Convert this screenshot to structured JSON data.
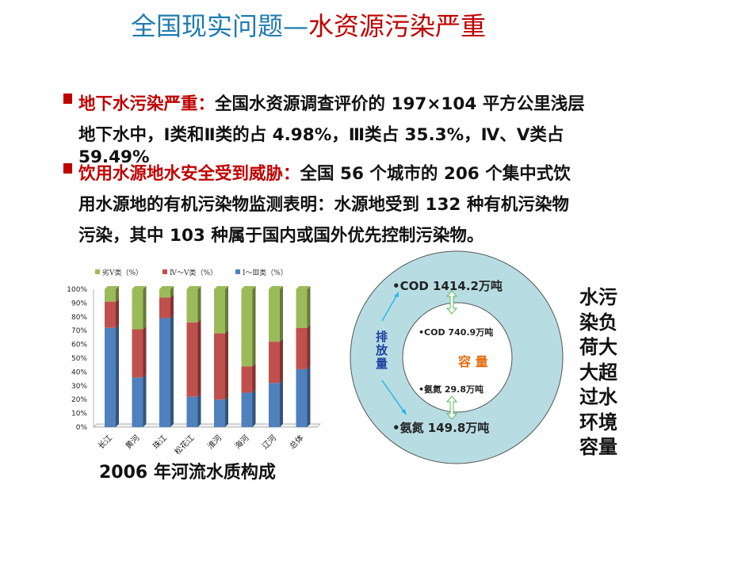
{
  "title": {
    "part1": "全国现实问题—",
    "part2": "水资源污染严重",
    "color1": "#1f7bb0",
    "color2": "#c00000"
  },
  "bullets": [
    {
      "heading": "地下水污染严重：",
      "lines": [
        "全国水资源调查评价的 197×104 平方公里浅层",
        "地下水中，Ⅰ类和Ⅱ类的占 4.98%，Ⅲ类占 35.3%，Ⅳ、Ⅴ类占",
        "59.49%"
      ]
    },
    {
      "heading": "饮用水源地水安全受到威胁：",
      "lines": [
        "全国 56 个城市的 206 个集中式饮",
        "用水源地的有机污染物监测表明：水源地受到 132 种有机污染物",
        "污染，其中 103 种属于国内或国外优先控制污染物。"
      ]
    }
  ],
  "chart_caption": "2006 年河流水质构成",
  "chart_data": {
    "type": "bar",
    "stacked": true,
    "categories": [
      "长江",
      "黄河",
      "珠江",
      "松花江",
      "淮河",
      "海河",
      "辽河",
      "总体"
    ],
    "series": [
      {
        "name": "Ⅰ～Ⅲ类（%）",
        "color": "#4f81bd",
        "values": [
          72,
          36,
          79,
          22,
          20,
          25,
          32,
          42
        ]
      },
      {
        "name": "Ⅳ～Ⅴ类（%）",
        "color": "#c0504d",
        "values": [
          19,
          35,
          15,
          54,
          48,
          19,
          30,
          30
        ]
      },
      {
        "name": "劣Ⅴ类（%）",
        "color": "#9bbb59",
        "values": [
          9,
          29,
          6,
          24,
          32,
          56,
          38,
          28
        ]
      }
    ],
    "legend_order": [
      "劣Ⅴ类（%）",
      "Ⅳ～Ⅴ类（%）",
      "Ⅰ～Ⅲ类（%）"
    ],
    "yticks": [
      "0%",
      "10%",
      "20%",
      "30%",
      "40%",
      "50%",
      "60%",
      "70%",
      "80%",
      "90%",
      "100%"
    ],
    "ylim": [
      0,
      100
    ],
    "legend_position": "top",
    "grid": false
  },
  "diagram": {
    "outer_top": "•COD 1414.2万吨",
    "outer_bottom": "•氨氮  149.8万吨",
    "inner_top": "•COD 740.9万吨",
    "inner_bottom": "•氨氮  29.8万吨",
    "center": "容  量",
    "side": "排放量",
    "outer_color": "#b7dde3"
  },
  "side_text": [
    "水污",
    "染负",
    "荷大",
    "大超",
    "过水",
    "环境",
    "容量"
  ]
}
